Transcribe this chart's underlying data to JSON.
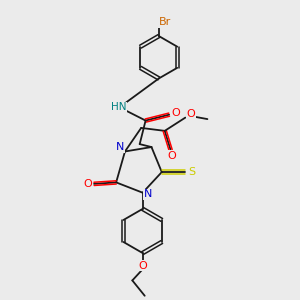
{
  "bg_color": "#ebebeb",
  "atom_colors": {
    "Br": "#cc6600",
    "N": "#0000cc",
    "O": "#ff0000",
    "S": "#cccc00",
    "H": "#008080",
    "C": "#000000"
  },
  "bond_color": "#1a1a1a",
  "lw": 1.3,
  "lwd": 1.1,
  "fs": 7.5
}
